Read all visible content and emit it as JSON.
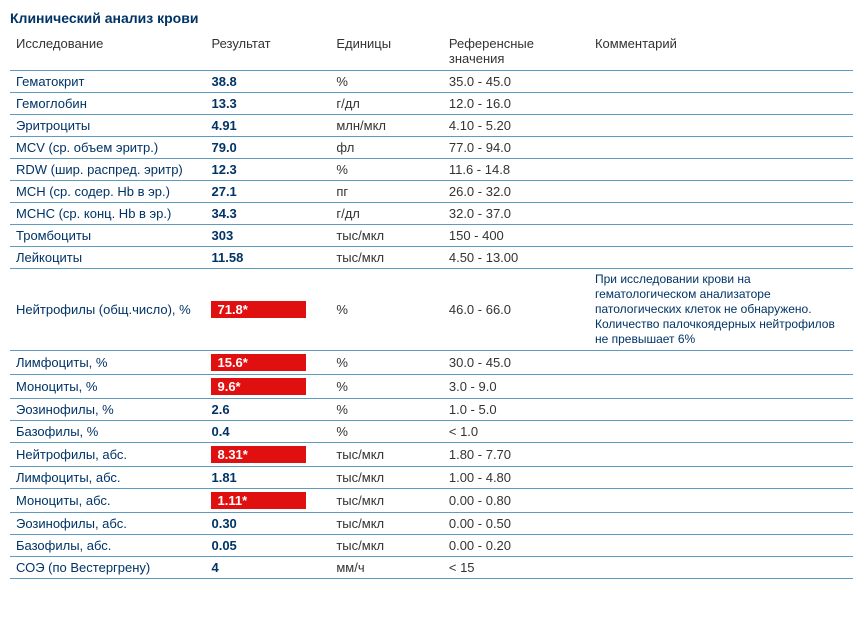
{
  "title": "Клинический анализ крови",
  "columns": {
    "test": "Исследование",
    "result": "Результат",
    "units": "Единицы",
    "ref": "Референсные значения",
    "comment": "Комментарий"
  },
  "colors": {
    "text_primary": "#003366",
    "text_secondary": "#333333",
    "row_border": "#5f9bbf",
    "abnormal_bg": "#e01010",
    "abnormal_fg": "#ffffff",
    "background": "#ffffff"
  },
  "rows": [
    {
      "test": "Гематокрит",
      "result": "38.8",
      "abnormal": false,
      "units": "%",
      "ref": "35.0 - 45.0",
      "comment": ""
    },
    {
      "test": "Гемоглобин",
      "result": "13.3",
      "abnormal": false,
      "units": "г/дл",
      "ref": "12.0 - 16.0",
      "comment": ""
    },
    {
      "test": "Эритроциты",
      "result": "4.91",
      "abnormal": false,
      "units": "млн/мкл",
      "ref": "4.10 - 5.20",
      "comment": ""
    },
    {
      "test": "MCV (ср. объем эритр.)",
      "result": "79.0",
      "abnormal": false,
      "units": "фл",
      "ref": "77.0 - 94.0",
      "comment": ""
    },
    {
      "test": "RDW (шир. распред. эритр)",
      "result": "12.3",
      "abnormal": false,
      "units": "%",
      "ref": "11.6 - 14.8",
      "comment": ""
    },
    {
      "test": "MCH (ср. содер. Hb в эр.)",
      "result": "27.1",
      "abnormal": false,
      "units": "пг",
      "ref": "26.0 - 32.0",
      "comment": ""
    },
    {
      "test": "MCHC (ср. конц. Hb в эр.)",
      "result": "34.3",
      "abnormal": false,
      "units": "г/дл",
      "ref": "32.0 - 37.0",
      "comment": ""
    },
    {
      "test": "Тромбоциты",
      "result": "303",
      "abnormal": false,
      "units": "тыс/мкл",
      "ref": "150 - 400",
      "comment": ""
    },
    {
      "test": "Лейкоциты",
      "result": "11.58",
      "abnormal": false,
      "units": "тыс/мкл",
      "ref": "4.50 - 13.00",
      "comment": ""
    },
    {
      "test": "Нейтрофилы (общ.число), %",
      "result": "71.8*",
      "abnormal": true,
      "units": "%",
      "ref": "46.0 - 66.0",
      "comment": "При исследовании крови на гематологическом анализаторе патологических клеток не обнаружено. Количество палочкоядерных нейтрофилов не превышает 6%"
    },
    {
      "test": "Лимфоциты, %",
      "result": "15.6*",
      "abnormal": true,
      "units": "%",
      "ref": "30.0 - 45.0",
      "comment": ""
    },
    {
      "test": "Моноциты, %",
      "result": "9.6*",
      "abnormal": true,
      "units": "%",
      "ref": "3.0 - 9.0",
      "comment": ""
    },
    {
      "test": "Эозинофилы, %",
      "result": "2.6",
      "abnormal": false,
      "units": "%",
      "ref": "1.0 - 5.0",
      "comment": ""
    },
    {
      "test": "Базофилы, %",
      "result": "0.4",
      "abnormal": false,
      "units": "%",
      "ref": "< 1.0",
      "comment": ""
    },
    {
      "test": "Нейтрофилы, абс.",
      "result": "8.31*",
      "abnormal": true,
      "units": "тыс/мкл",
      "ref": "1.80 - 7.70",
      "comment": ""
    },
    {
      "test": "Лимфоциты, абс.",
      "result": "1.81",
      "abnormal": false,
      "units": "тыс/мкл",
      "ref": "1.00 - 4.80",
      "comment": ""
    },
    {
      "test": "Моноциты, абс.",
      "result": "1.11*",
      "abnormal": true,
      "units": "тыс/мкл",
      "ref": "0.00 - 0.80",
      "comment": ""
    },
    {
      "test": "Эозинофилы, абс.",
      "result": "0.30",
      "abnormal": false,
      "units": "тыс/мкл",
      "ref": "0.00 - 0.50",
      "comment": ""
    },
    {
      "test": "Базофилы, абс.",
      "result": "0.05",
      "abnormal": false,
      "units": "тыс/мкл",
      "ref": "0.00 - 0.20",
      "comment": ""
    },
    {
      "test": "СОЭ (по Вестергрену)",
      "result": "4",
      "abnormal": false,
      "units": "мм/ч",
      "ref": "< 15",
      "comment": ""
    }
  ]
}
